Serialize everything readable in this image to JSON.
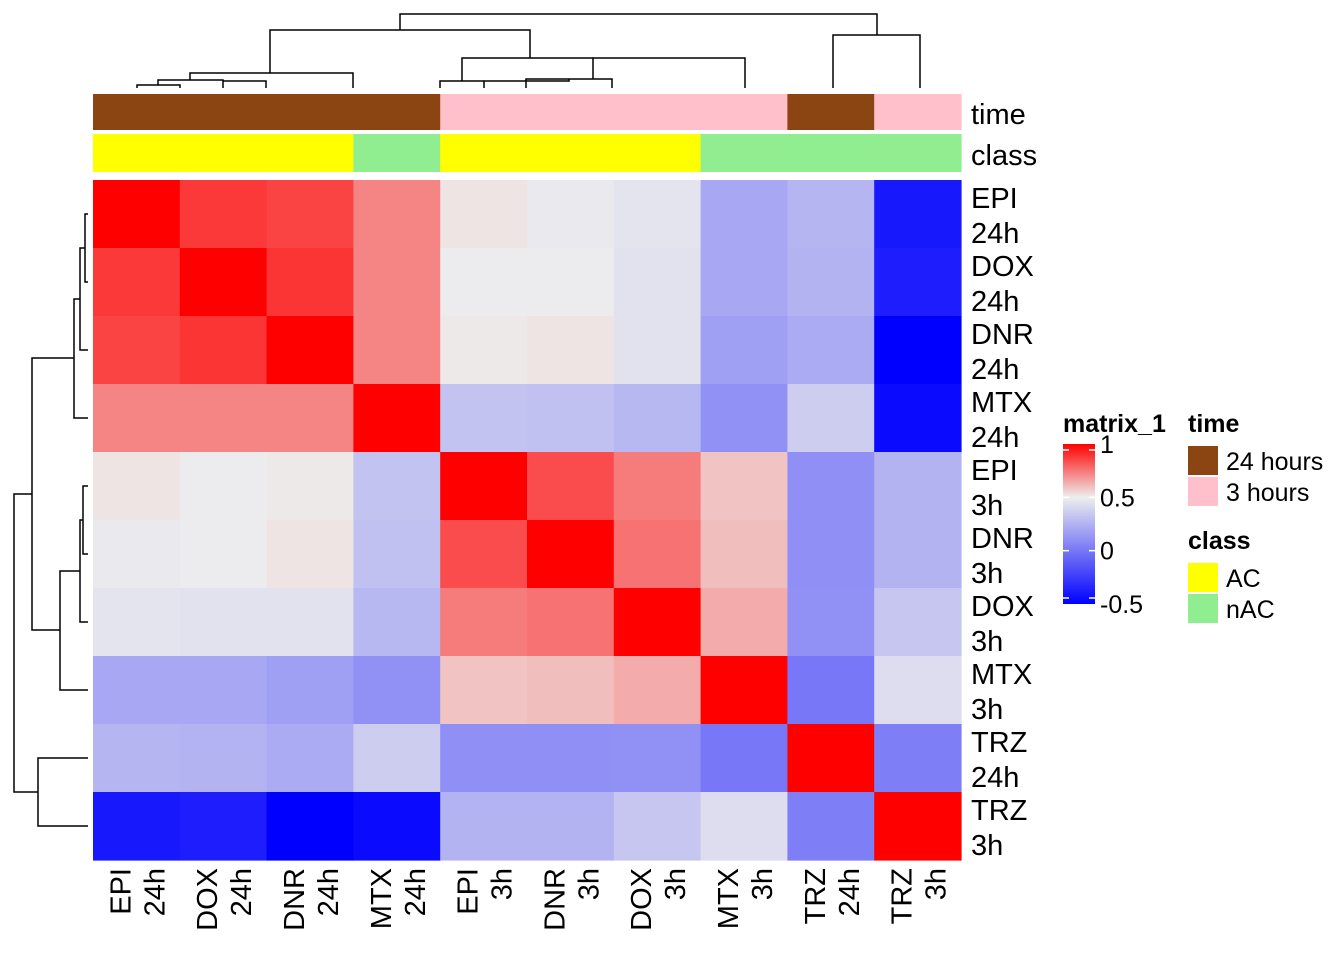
{
  "chart_data": {
    "type": "heatmap",
    "row_labels": [
      [
        "EPI",
        "24h"
      ],
      [
        "DOX",
        "24h"
      ],
      [
        "DNR",
        "24h"
      ],
      [
        "MTX",
        "24h"
      ],
      [
        "EPI",
        "3h"
      ],
      [
        "DNR",
        "3h"
      ],
      [
        "DOX",
        "3h"
      ],
      [
        "MTX",
        "3h"
      ],
      [
        "TRZ",
        "24h"
      ],
      [
        "TRZ",
        "3h"
      ]
    ],
    "col_labels": [
      [
        "EPI",
        "24h"
      ],
      [
        "DOX",
        "24h"
      ],
      [
        "DNR",
        "24h"
      ],
      [
        "MTX",
        "24h"
      ],
      [
        "EPI",
        "3h"
      ],
      [
        "DNR",
        "3h"
      ],
      [
        "DOX",
        "3h"
      ],
      [
        "MTX",
        "3h"
      ],
      [
        "TRZ",
        "24h"
      ],
      [
        "TRZ",
        "3h"
      ]
    ],
    "values": [
      [
        1.0,
        0.88,
        0.86,
        0.72,
        0.52,
        0.48,
        0.46,
        0.2,
        0.26,
        -0.4
      ],
      [
        0.88,
        1.0,
        0.89,
        0.72,
        0.49,
        0.49,
        0.45,
        0.2,
        0.25,
        -0.38
      ],
      [
        0.86,
        0.89,
        1.0,
        0.72,
        0.51,
        0.52,
        0.45,
        0.17,
        0.22,
        -0.5
      ],
      [
        0.72,
        0.72,
        0.72,
        1.0,
        0.32,
        0.31,
        0.27,
        0.11,
        0.36,
        -0.46
      ],
      [
        0.52,
        0.49,
        0.51,
        0.32,
        1.0,
        0.84,
        0.74,
        0.59,
        0.1,
        0.25
      ],
      [
        0.48,
        0.49,
        0.52,
        0.31,
        0.84,
        1.0,
        0.76,
        0.6,
        0.1,
        0.25
      ],
      [
        0.46,
        0.45,
        0.45,
        0.27,
        0.74,
        0.76,
        1.0,
        0.64,
        0.11,
        0.33
      ],
      [
        0.2,
        0.2,
        0.17,
        0.11,
        0.59,
        0.6,
        0.64,
        1.0,
        0.0,
        0.43
      ],
      [
        0.26,
        0.25,
        0.22,
        0.36,
        0.1,
        0.1,
        0.11,
        0.0,
        1.0,
        0.03
      ],
      [
        -0.4,
        -0.38,
        -0.5,
        -0.46,
        0.25,
        0.25,
        0.33,
        0.43,
        0.03,
        1.0
      ]
    ],
    "annotations": {
      "time": [
        "24 hours",
        "24 hours",
        "24 hours",
        "24 hours",
        "3 hours",
        "3 hours",
        "3 hours",
        "3 hours",
        "24 hours",
        "3 hours"
      ],
      "class": [
        "AC",
        "AC",
        "AC",
        "nAC",
        "AC",
        "AC",
        "AC",
        "nAC",
        "nAC",
        "nAC"
      ]
    },
    "annotation_labels": {
      "time": "time",
      "class": "class"
    },
    "color_scale": {
      "name": "matrix_1",
      "stops": [
        {
          "value": -0.5,
          "color": "#0000FF"
        },
        {
          "value": 0.5,
          "color": "#EEEEEE"
        },
        {
          "value": 1,
          "color": "#FF0000"
        }
      ],
      "ticks": [
        "1",
        "0.5",
        "0",
        "-0.5"
      ],
      "tick_values": [
        1,
        0.5,
        0,
        -0.5
      ]
    },
    "legends": [
      {
        "title": "time",
        "items": [
          {
            "label": "24 hours",
            "color": "#8B4513"
          },
          {
            "label": "3 hours",
            "color": "#FFC0CB"
          }
        ]
      },
      {
        "title": "class",
        "items": [
          {
            "label": "AC",
            "color": "#FFFF00"
          },
          {
            "label": "nAC",
            "color": "#90EE90"
          }
        ]
      }
    ],
    "dendrogram": "shown on rows (left) and columns (top)",
    "grid": false,
    "legend_position": "right"
  }
}
